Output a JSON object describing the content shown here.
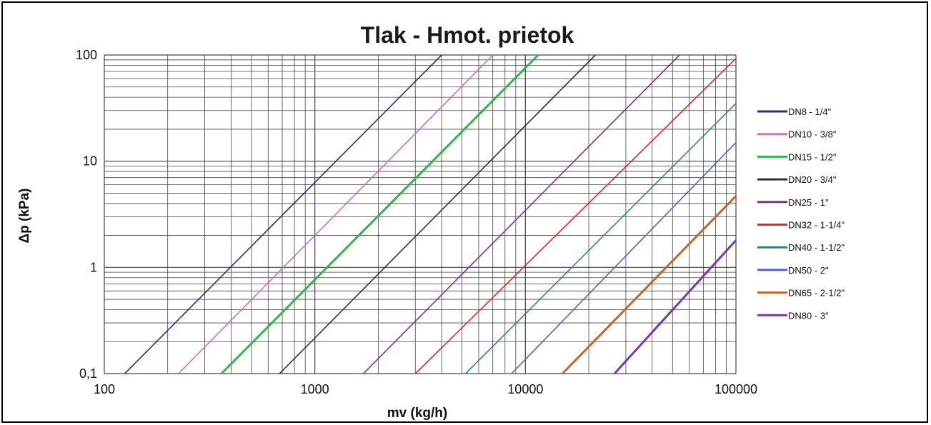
{
  "chart_data": {
    "type": "line",
    "title": "Tlak - Hmot. prietok",
    "xlabel": "mv (kg/h)",
    "ylabel": "Δp (kPa)",
    "xscale": "log",
    "yscale": "log",
    "xlim": [
      100,
      100000
    ],
    "ylim": [
      0.1,
      100
    ],
    "x_ticks": [
      "100",
      "1000",
      "10000",
      "100000"
    ],
    "y_ticks": [
      "0,1",
      "1",
      "10",
      "100"
    ],
    "grid": true,
    "legend_position": "right",
    "series": [
      {
        "name": "DN8 - 1/4\"",
        "color": "#2b2f7a",
        "bold": false,
        "x": [
          125,
          4000
        ],
        "y": [
          0.1,
          100
        ]
      },
      {
        "name": "DN10 - 3/8\"",
        "color": "#d070c0",
        "bold": false,
        "x": [
          225,
          7000
        ],
        "y": [
          0.1,
          100
        ]
      },
      {
        "name": "DN15 - 1/2\"",
        "color": "#2db84a",
        "bold": true,
        "x": [
          360,
          11500
        ],
        "y": [
          0.1,
          100
        ]
      },
      {
        "name": "DN20 - 3/4\"",
        "color": "#333333",
        "bold": false,
        "x": [
          680,
          21500
        ],
        "y": [
          0.1,
          100
        ]
      },
      {
        "name": "DN25 - 1\"",
        "color": "#8a2a9a",
        "bold": false,
        "x": [
          1700,
          54000
        ],
        "y": [
          0.1,
          100
        ]
      },
      {
        "name": "DN32 - 1-1/4\"",
        "color": "#ee2222",
        "bold": false,
        "x": [
          3000,
          100000
        ],
        "y": [
          0.1,
          93
        ]
      },
      {
        "name": "DN40 - 1-1/2\"",
        "color": "#1f8a8a",
        "bold": false,
        "x": [
          5200,
          100000
        ],
        "y": [
          0.1,
          35
        ]
      },
      {
        "name": "DN50 - 2\"",
        "color": "#4a64c8",
        "bold": false,
        "x": [
          8600,
          100000
        ],
        "y": [
          0.1,
          15
        ]
      },
      {
        "name": "DN65 - 2-1/2\"",
        "color": "#c8642a",
        "bold": true,
        "x": [
          15000,
          100000
        ],
        "y": [
          0.1,
          4.7
        ]
      },
      {
        "name": "DN80 - 3\"",
        "color": "#7a35b0",
        "bold": true,
        "x": [
          26500,
          100000
        ],
        "y": [
          0.1,
          1.8
        ]
      }
    ]
  }
}
